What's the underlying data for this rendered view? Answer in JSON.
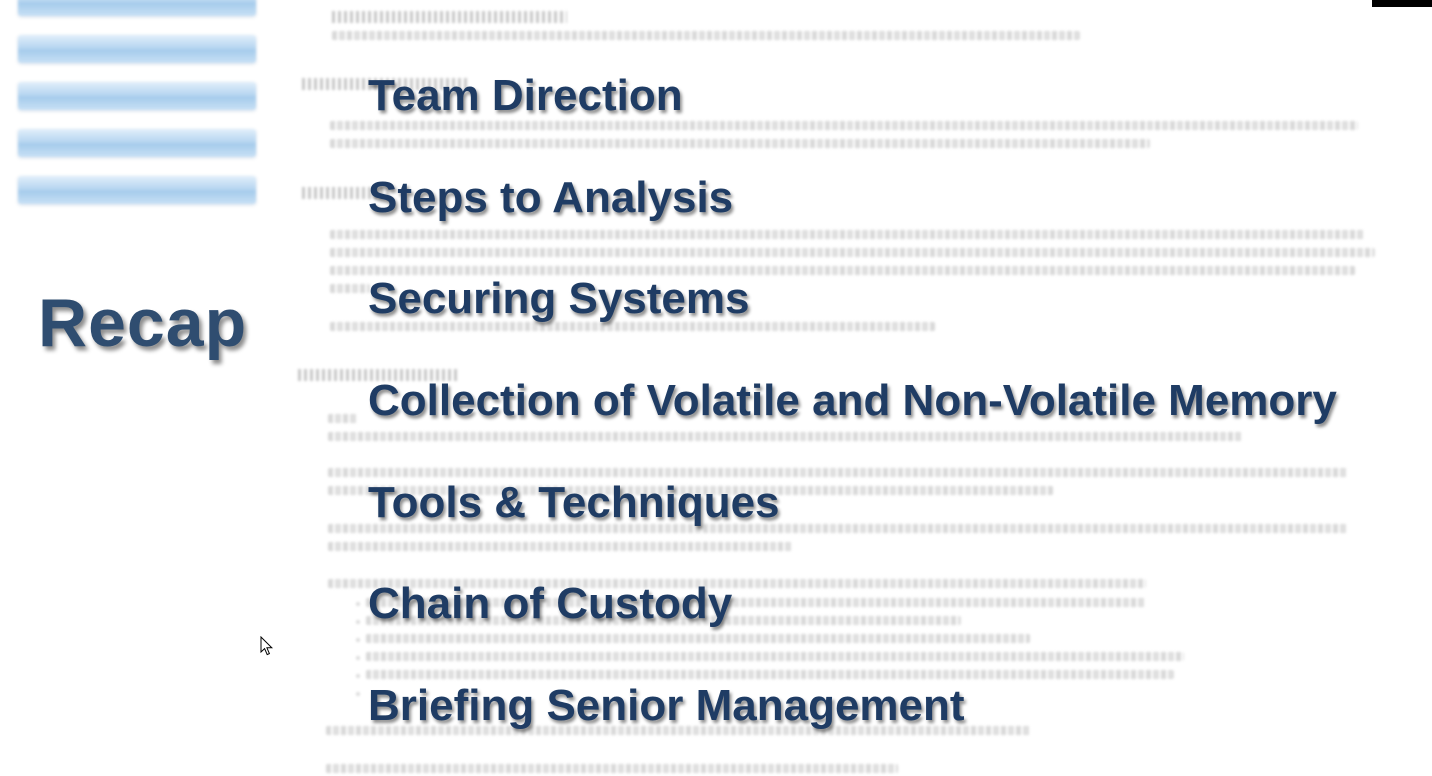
{
  "slide": {
    "heading": "Recap",
    "items": [
      "Team Direction",
      "Steps to Analysis",
      "Securing Systems",
      "Collection of Volatile and Non-Volatile Memory",
      "Tools & Techniques",
      "Chain of Custody",
      "Briefing Senior Management"
    ]
  },
  "background_nav": {
    "visible_buttons": 5
  },
  "colors": {
    "heading": "#2f4d70",
    "items": "#1f3c64",
    "nav_button": "#7fb6e6",
    "background": "#ffffff"
  },
  "icons": {
    "cursor": "mouse-pointer-icon"
  }
}
